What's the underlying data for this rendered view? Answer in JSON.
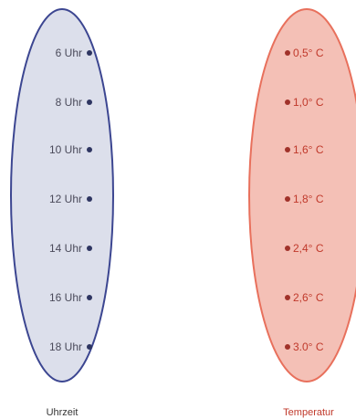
{
  "colors": {
    "left_fill": "#dcdfeb",
    "left_stroke": "#3c4691",
    "left_dot": "#2e3561",
    "left_text": "#4a4a5a",
    "right_fill": "#f4c0b6",
    "right_stroke": "#e8705c",
    "right_dot": "#a0322a",
    "right_text": "#c0392b"
  },
  "left_set": {
    "caption": "Uhrzeit",
    "items": [
      "6 Uhr",
      "8 Uhr",
      "10 Uhr",
      "12 Uhr",
      "14 Uhr",
      "16 Uhr",
      "18 Uhr"
    ]
  },
  "right_set": {
    "caption": "Temperatur",
    "items": [
      "0,5° C",
      "1,0° C",
      "1,6° C",
      "1,8° C",
      "2,4° C",
      "2,6° C",
      "3.0° C"
    ]
  }
}
